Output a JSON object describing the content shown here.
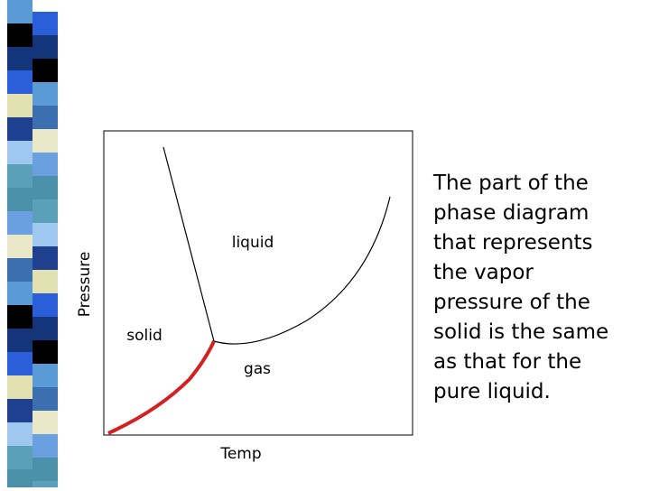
{
  "diagram": {
    "labels": {
      "liquid": "liquid",
      "solid": "solid",
      "gas": "gas",
      "x_axis": "Temp",
      "y_axis": "Pressure"
    },
    "text": {
      "lines": [
        "The part of the",
        "phase diagram",
        "that represents",
        "the vapor",
        "pressure of the",
        "solid is the same",
        "as that for the",
        "pure liquid."
      ]
    }
  }
}
